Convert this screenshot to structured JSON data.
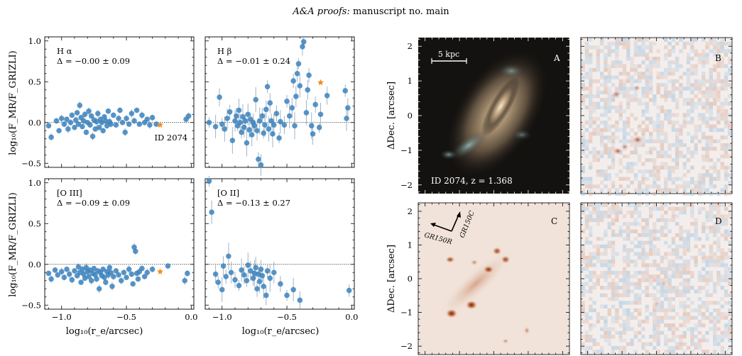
{
  "header": {
    "italic": "A&A proofs:",
    "rest": " manuscript no. main"
  },
  "scatter_panels": {
    "ylabel": "log₁₀(F_MR/F_GRIZLI)",
    "xlabel": "log₁₀(r_e/arcsec)",
    "xticks": [
      "−1.0",
      "−0.5",
      "0.0"
    ],
    "yticks_top": [
      "−0.5",
      "0.0",
      "0.5",
      "1.0"
    ],
    "yticks_bottom": [
      "−0.5",
      "0.0",
      "0.5",
      "1.0"
    ]
  },
  "annotation_id": "ID 2074",
  "image_panels": {
    "ylabel": "ΔDec. [arcsec]",
    "yticks": [
      "−2",
      "−1",
      "0",
      "1",
      "2"
    ],
    "scalebar_label": "5 kpc",
    "caption_A": "ID 2074, z = 1.368",
    "labels": [
      "A",
      "B",
      "C",
      "D"
    ],
    "arrow_labels": [
      "GR150R",
      "GR150C"
    ]
  },
  "chart_data": [
    {
      "type": "scatter",
      "panel": "Hα",
      "line_label": "H α",
      "delta": "Δ = −0.00 ± 0.09",
      "xlim": [
        -1.13,
        0.02
      ],
      "ylim": [
        -0.55,
        1.05
      ],
      "reference_line": 0.0,
      "highlight": {
        "name": "ID 2074",
        "x": -0.24,
        "y": -0.03
      },
      "points": [
        [
          -1.1,
          -0.04
        ],
        [
          -1.08,
          -0.18
        ],
        [
          -1.04,
          0.02
        ],
        [
          -1.02,
          -0.1
        ],
        [
          -1.0,
          0.05
        ],
        [
          -0.98,
          -0.02
        ],
        [
          -0.96,
          0.04
        ],
        [
          -0.95,
          -0.08
        ],
        [
          -0.93,
          0.0
        ],
        [
          -0.92,
          0.09
        ],
        [
          -0.9,
          -0.06
        ],
        [
          -0.89,
          0.03
        ],
        [
          -0.88,
          0.12
        ],
        [
          -0.87,
          -0.02
        ],
        [
          -0.86,
          0.21
        ],
        [
          -0.85,
          0.06
        ],
        [
          -0.84,
          -0.05
        ],
        [
          -0.83,
          0.02
        ],
        [
          -0.82,
          0.1
        ],
        [
          -0.81,
          -0.12
        ],
        [
          -0.8,
          0.0
        ],
        [
          -0.79,
          0.14
        ],
        [
          -0.78,
          -0.03
        ],
        [
          -0.77,
          0.08
        ],
        [
          -0.76,
          -0.17
        ],
        [
          -0.75,
          0.03
        ],
        [
          -0.74,
          -0.08
        ],
        [
          -0.73,
          0.01
        ],
        [
          -0.72,
          0.11
        ],
        [
          -0.71,
          -0.06
        ],
        [
          -0.7,
          0.04
        ],
        [
          -0.69,
          0.0
        ],
        [
          -0.68,
          -0.1
        ],
        [
          -0.67,
          0.07
        ],
        [
          -0.66,
          0.02
        ],
        [
          -0.65,
          -0.04
        ],
        [
          -0.64,
          0.14
        ],
        [
          -0.63,
          0.01
        ],
        [
          -0.62,
          -0.02
        ],
        [
          -0.6,
          0.09
        ],
        [
          -0.58,
          -0.03
        ],
        [
          -0.56,
          0.05
        ],
        [
          -0.55,
          0.15
        ],
        [
          -0.53,
          0.0
        ],
        [
          -0.51,
          -0.12
        ],
        [
          -0.5,
          0.05
        ],
        [
          -0.48,
          -0.02
        ],
        [
          -0.46,
          0.11
        ],
        [
          -0.44,
          0.02
        ],
        [
          -0.42,
          0.15
        ],
        [
          -0.4,
          -0.02
        ],
        [
          -0.38,
          0.09
        ],
        [
          -0.36,
          0.0
        ],
        [
          -0.34,
          0.04
        ],
        [
          -0.32,
          -0.03
        ],
        [
          -0.3,
          0.06
        ],
        [
          -0.27,
          -0.02
        ],
        [
          -0.04,
          0.04
        ],
        [
          -0.02,
          0.08
        ]
      ],
      "ylabel_shown": true,
      "xlabel_shown": false
    },
    {
      "type": "scatter",
      "panel": "Hβ",
      "line_label": "H β",
      "delta": "Δ = −0.01 ± 0.24",
      "xlim": [
        -1.13,
        0.02
      ],
      "ylim": [
        -0.55,
        1.05
      ],
      "reference_line": 0.0,
      "highlight": {
        "name": "",
        "x": -0.24,
        "y": 0.49
      },
      "points": [
        [
          -1.1,
          0.0
        ],
        [
          -1.05,
          -0.05
        ],
        [
          -1.02,
          0.31
        ],
        [
          -1.0,
          -0.02
        ],
        [
          -0.98,
          -0.08
        ],
        [
          -0.96,
          0.05
        ],
        [
          -0.94,
          0.13
        ],
        [
          -0.92,
          -0.22
        ],
        [
          -0.9,
          0.02
        ],
        [
          -0.89,
          0.08
        ],
        [
          -0.88,
          -0.04
        ],
        [
          -0.87,
          0.15
        ],
        [
          -0.86,
          0.0
        ],
        [
          -0.85,
          -0.12
        ],
        [
          -0.84,
          0.07
        ],
        [
          -0.83,
          -0.06
        ],
        [
          -0.82,
          0.02
        ],
        [
          -0.81,
          -0.25
        ],
        [
          -0.8,
          0.1
        ],
        [
          -0.79,
          -0.09
        ],
        [
          -0.78,
          0.04
        ],
        [
          -0.77,
          -0.15
        ],
        [
          -0.76,
          0.0
        ],
        [
          -0.75,
          -0.04
        ],
        [
          -0.74,
          0.28
        ],
        [
          -0.73,
          -0.1
        ],
        [
          -0.72,
          -0.45
        ],
        [
          -0.71,
          0.02
        ],
        [
          -0.7,
          -0.52
        ],
        [
          -0.69,
          0.08
        ],
        [
          -0.68,
          -0.13
        ],
        [
          -0.67,
          -0.03
        ],
        [
          -0.66,
          0.16
        ],
        [
          -0.65,
          0.44
        ],
        [
          -0.64,
          -0.08
        ],
        [
          -0.63,
          0.24
        ],
        [
          -0.62,
          0.02
        ],
        [
          -0.61,
          -0.14
        ],
        [
          -0.6,
          -0.03
        ],
        [
          -0.58,
          0.11
        ],
        [
          -0.56,
          -0.19
        ],
        [
          -0.55,
          0.01
        ],
        [
          -0.52,
          -0.03
        ],
        [
          -0.5,
          0.26
        ],
        [
          -0.48,
          0.08
        ],
        [
          -0.46,
          0.18
        ],
        [
          -0.45,
          0.51
        ],
        [
          -0.44,
          -0.04
        ],
        [
          -0.43,
          0.32
        ],
        [
          -0.42,
          0.6
        ],
        [
          -0.41,
          0.72
        ],
        [
          -0.4,
          0.45
        ],
        [
          -0.38,
          0.93
        ],
        [
          -0.37,
          0.99
        ],
        [
          -0.35,
          0.12
        ],
        [
          -0.34,
          0.4
        ],
        [
          -0.33,
          0.58
        ],
        [
          -0.31,
          -0.04
        ],
        [
          -0.3,
          -0.14
        ],
        [
          -0.28,
          0.22
        ],
        [
          -0.25,
          -0.06
        ],
        [
          -0.24,
          0.1
        ],
        [
          -0.19,
          0.33
        ],
        [
          -0.05,
          0.39
        ],
        [
          -0.04,
          0.05
        ],
        [
          -0.03,
          0.18
        ]
      ],
      "ylabel_shown": false,
      "xlabel_shown": false
    },
    {
      "type": "scatter",
      "panel": "[O III]",
      "line_label": "[O III]",
      "delta": "Δ = −0.09 ± 0.09",
      "xlim": [
        -1.13,
        0.02
      ],
      "ylim": [
        -0.55,
        1.05
      ],
      "reference_line": 0.0,
      "highlight": {
        "name": "",
        "x": -0.24,
        "y": -0.09
      },
      "points": [
        [
          -1.1,
          -0.11
        ],
        [
          -1.08,
          -0.18
        ],
        [
          -1.05,
          -0.07
        ],
        [
          -1.03,
          -0.13
        ],
        [
          -1.0,
          -0.09
        ],
        [
          -0.98,
          -0.16
        ],
        [
          -0.96,
          -0.06
        ],
        [
          -0.94,
          -0.12
        ],
        [
          -0.92,
          -0.19
        ],
        [
          -0.9,
          -0.08
        ],
        [
          -0.88,
          -0.14
        ],
        [
          -0.87,
          -0.03
        ],
        [
          -0.86,
          -0.1
        ],
        [
          -0.85,
          -0.22
        ],
        [
          -0.84,
          -0.06
        ],
        [
          -0.83,
          -0.12
        ],
        [
          -0.82,
          -0.17
        ],
        [
          -0.81,
          -0.04
        ],
        [
          -0.8,
          -0.09
        ],
        [
          -0.79,
          -0.15
        ],
        [
          -0.78,
          -0.07
        ],
        [
          -0.77,
          -0.2
        ],
        [
          -0.76,
          -0.11
        ],
        [
          -0.75,
          -0.05
        ],
        [
          -0.74,
          -0.13
        ],
        [
          -0.73,
          -0.18
        ],
        [
          -0.72,
          -0.08
        ],
        [
          -0.71,
          -0.3
        ],
        [
          -0.7,
          -0.1
        ],
        [
          -0.69,
          -0.14
        ],
        [
          -0.68,
          -0.06
        ],
        [
          -0.67,
          -0.16
        ],
        [
          -0.66,
          -0.22
        ],
        [
          -0.65,
          -0.09
        ],
        [
          -0.64,
          -0.13
        ],
        [
          -0.63,
          -0.04
        ],
        [
          -0.62,
          -0.1
        ],
        [
          -0.61,
          -0.27
        ],
        [
          -0.6,
          -0.15
        ],
        [
          -0.58,
          -0.08
        ],
        [
          -0.56,
          -0.13
        ],
        [
          -0.54,
          -0.2
        ],
        [
          -0.52,
          -0.1
        ],
        [
          -0.5,
          -0.16
        ],
        [
          -0.48,
          -0.06
        ],
        [
          -0.46,
          -0.12
        ],
        [
          -0.45,
          -0.24
        ],
        [
          -0.44,
          0.21
        ],
        [
          -0.43,
          0.16
        ],
        [
          -0.42,
          -0.11
        ],
        [
          -0.41,
          -0.18
        ],
        [
          -0.4,
          -0.09
        ],
        [
          -0.38,
          -0.05
        ],
        [
          -0.36,
          -0.15
        ],
        [
          -0.34,
          -0.1
        ],
        [
          -0.3,
          -0.06
        ],
        [
          -0.18,
          -0.02
        ],
        [
          -0.05,
          -0.2
        ],
        [
          -0.03,
          -0.11
        ]
      ],
      "ylabel_shown": true,
      "xlabel_shown": true
    },
    {
      "type": "scatter",
      "panel": "[O II]",
      "line_label": "[O II]",
      "delta": "Δ = −0.13 ± 0.27",
      "xlim": [
        -1.13,
        0.02
      ],
      "ylim": [
        -0.55,
        1.05
      ],
      "reference_line": 0.0,
      "highlight": null,
      "points": [
        [
          -1.1,
          1.02
        ],
        [
          -1.08,
          0.64
        ],
        [
          -1.05,
          -0.12
        ],
        [
          -1.03,
          -0.22
        ],
        [
          -1.0,
          -0.31
        ],
        [
          -0.99,
          -0.02
        ],
        [
          -0.97,
          -0.15
        ],
        [
          -0.95,
          0.1
        ],
        [
          -0.93,
          -0.1
        ],
        [
          -0.9,
          -0.19
        ],
        [
          -0.87,
          -0.26
        ],
        [
          -0.85,
          -0.07
        ],
        [
          -0.83,
          -0.13
        ],
        [
          -0.81,
          -0.2
        ],
        [
          -0.8,
          -0.01
        ],
        [
          -0.78,
          -0.08
        ],
        [
          -0.76,
          -0.17
        ],
        [
          -0.75,
          -0.11
        ],
        [
          -0.74,
          -0.04
        ],
        [
          -0.73,
          -0.3
        ],
        [
          -0.72,
          -0.12
        ],
        [
          -0.71,
          -0.21
        ],
        [
          -0.7,
          -0.06
        ],
        [
          -0.69,
          -0.14
        ],
        [
          -0.68,
          -0.27
        ],
        [
          -0.66,
          -0.38
        ],
        [
          -0.65,
          -0.08
        ],
        [
          -0.63,
          -0.17
        ],
        [
          -0.6,
          -0.1
        ],
        [
          -0.55,
          -0.24
        ],
        [
          -0.5,
          -0.38
        ],
        [
          -0.45,
          -0.31
        ],
        [
          -0.4,
          -0.44
        ],
        [
          -0.02,
          -0.32
        ]
      ],
      "ylabel_shown": false,
      "xlabel_shown": true
    }
  ]
}
